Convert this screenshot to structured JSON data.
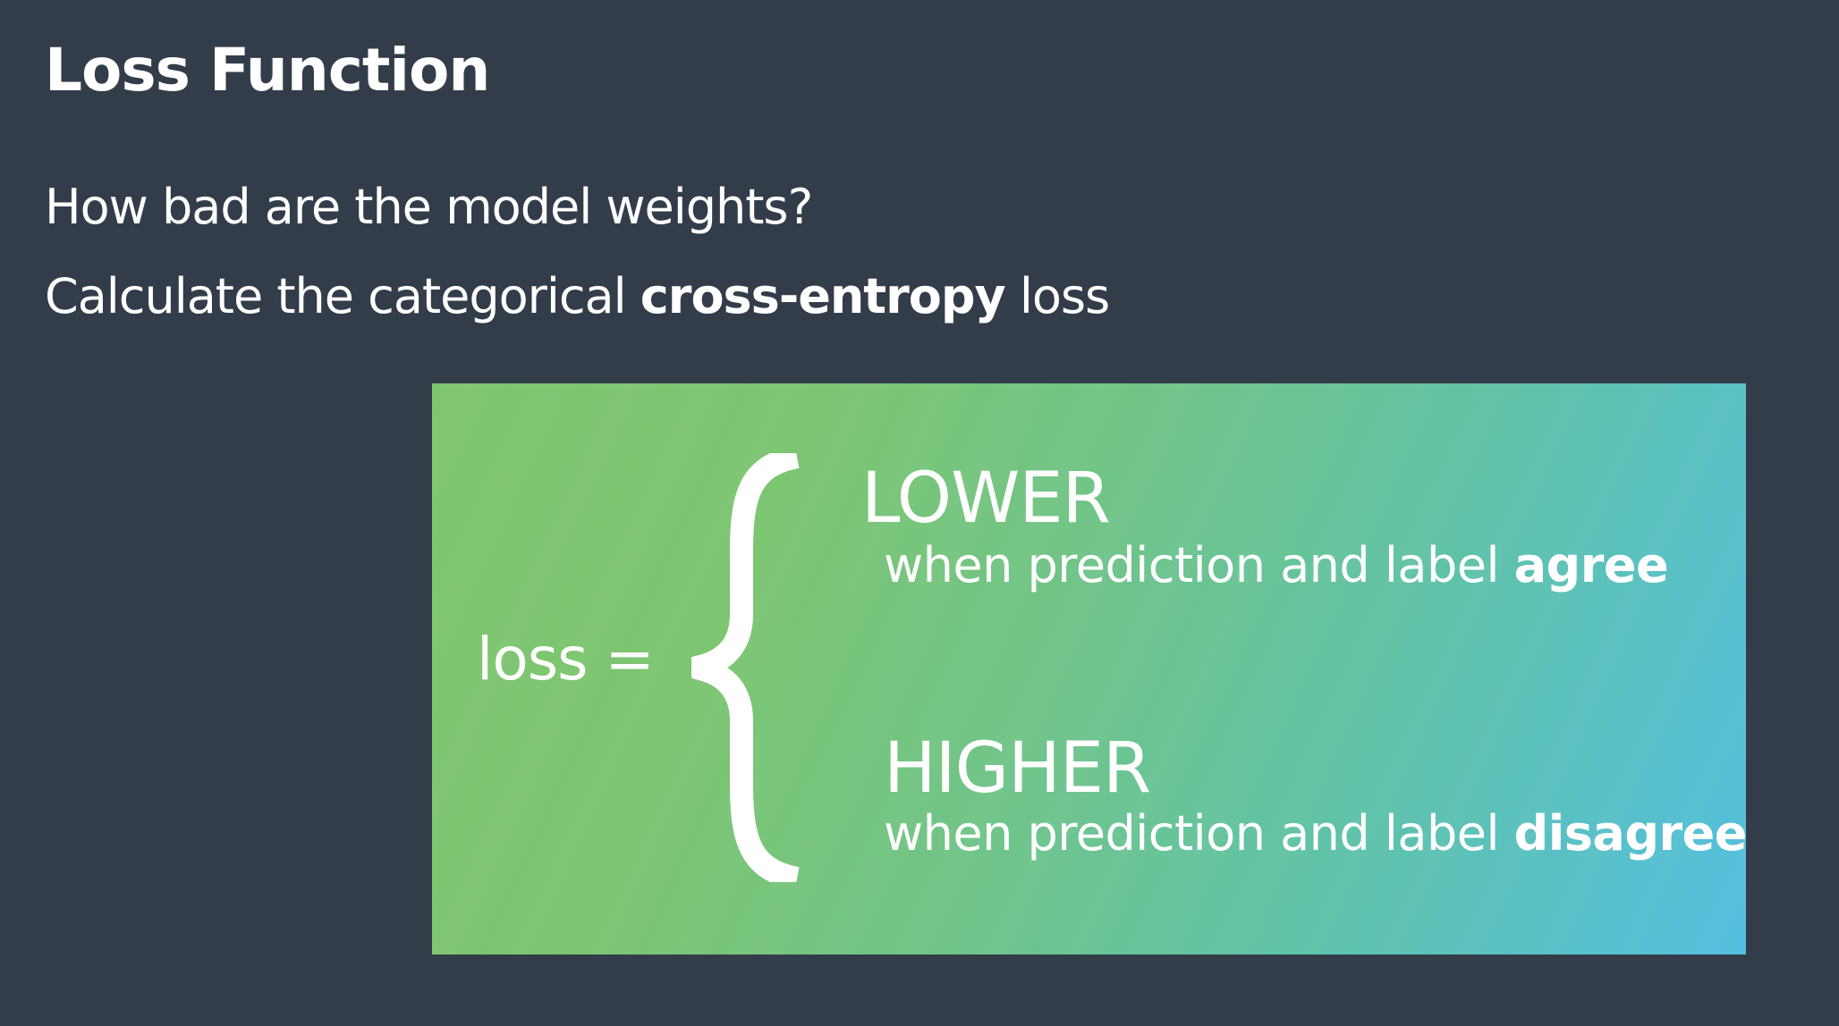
{
  "slide": {
    "title": "Loss Function",
    "bullet_1": "How bad are the model weights?",
    "bullet_2_prefix": "Calculate the categorical ",
    "bullet_2_bold": "cross-entropy",
    "bullet_2_suffix": " loss"
  },
  "panel": {
    "lhs": "loss =",
    "brace_icon": "left-curly-brace",
    "case_1": {
      "word": "LOWER",
      "desc_prefix": "when prediction and label ",
      "desc_bold": "agree"
    },
    "case_2": {
      "word": "HIGHER",
      "desc_prefix": "when prediction and label ",
      "desc_bold": "disagree"
    },
    "gradient_start": "#7ec66e",
    "gradient_end": "#52bee0"
  },
  "colors": {
    "background": "#333c49",
    "text": "#ffffff"
  }
}
